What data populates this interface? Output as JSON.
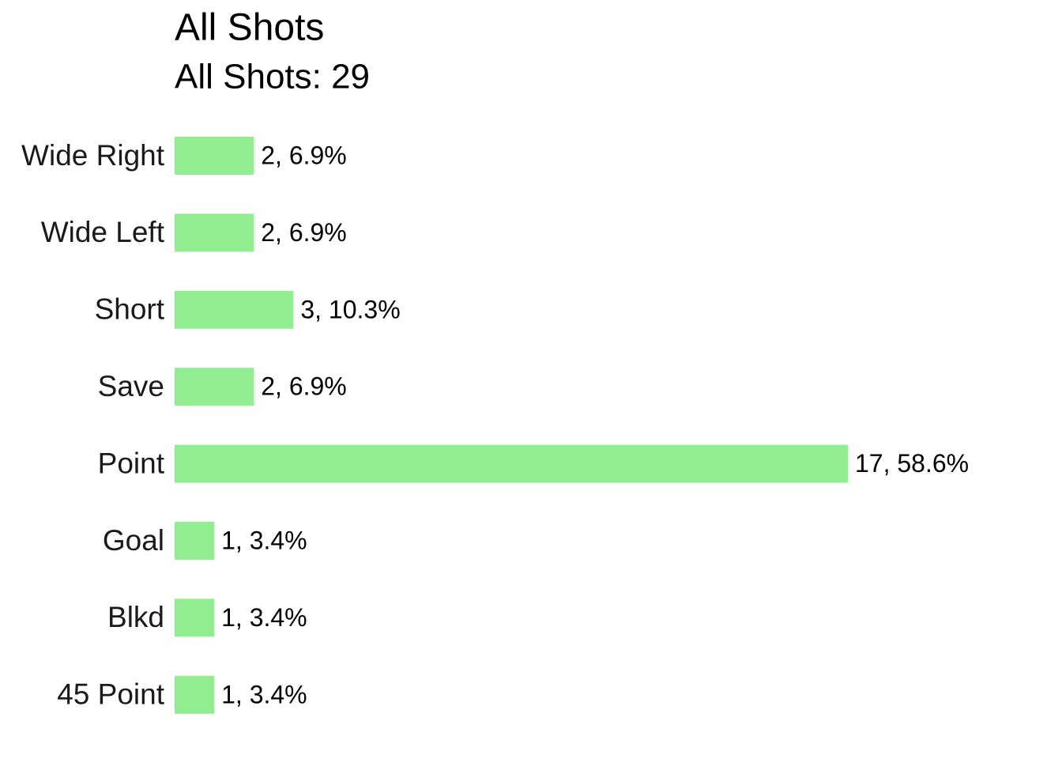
{
  "chart_data": {
    "type": "bar",
    "orientation": "horizontal",
    "title": "All Shots",
    "subtitle": "All Shots: 29",
    "categories": [
      "Wide Right",
      "Wide Left",
      "Short",
      "Save",
      "Point",
      "Goal",
      "Blkd",
      "45 Point"
    ],
    "values": [
      2,
      2,
      3,
      2,
      17,
      1,
      1,
      1
    ],
    "value_labels": [
      "2, 6.9%",
      "2, 6.9%",
      "3, 10.3%",
      "2, 6.9%",
      "17, 58.6%",
      "1, 3.4%",
      "1, 3.4%",
      "1, 3.4%"
    ],
    "color": "#90ee90"
  }
}
